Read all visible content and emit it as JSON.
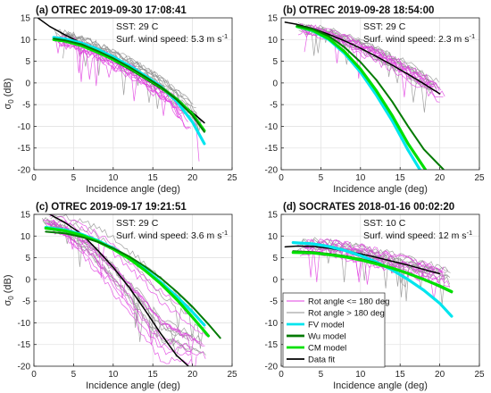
{
  "figure": {
    "legend_entries": [
      {
        "label": "Rot angle <= 180 deg",
        "color": "#e040e0"
      },
      {
        "label": "Rot angle > 180 deg",
        "color": "#909090"
      },
      {
        "label": "FV model",
        "color": "#00e5ee"
      },
      {
        "label": "Wu model",
        "color": "#007a00"
      },
      {
        "label": "CM model",
        "color": "#00e000"
      },
      {
        "label": "Data fit",
        "color": "#000000"
      }
    ],
    "colors": {
      "rot_le": "#e040e0",
      "rot_gt": "#909090",
      "fv": "#00e5ee",
      "wu": "#007a00",
      "cm": "#00e000",
      "fit": "#000000"
    }
  },
  "chart_data": [
    {
      "type": "line",
      "title": "(a) OTREC 2019-09-30 17:08:41",
      "annotations": [
        "SST: 29 C",
        "Surf. wind speed: 5.3 m s",
        "-1"
      ],
      "xlabel": "Incidence angle (deg)",
      "ylabel": "σ",
      "ylabel_sub": "0",
      "ylabel_unit": " (dB)",
      "xlim": [
        0,
        25
      ],
      "ylim": [
        -20,
        15
      ],
      "xticks": [
        0,
        5,
        10,
        15,
        20,
        25
      ],
      "yticks": [
        -20,
        -15,
        -10,
        -5,
        0,
        5,
        10,
        15
      ],
      "grid": true,
      "show_legend": false,
      "series": [
        {
          "key": "fit",
          "x": [
            0.5,
            2,
            4,
            6,
            8,
            10,
            12,
            14,
            16,
            18,
            20,
            21.5
          ],
          "y": [
            15,
            13,
            11,
            9.2,
            7.2,
            5.2,
            3.2,
            1.0,
            -1.3,
            -3.8,
            -6.8,
            -9.2
          ]
        },
        {
          "key": "fv",
          "x": [
            2.5,
            4,
            6,
            8,
            10,
            12,
            14,
            16,
            18,
            20,
            21.5
          ],
          "y": [
            10.5,
            10.1,
            9.2,
            7.8,
            6,
            4,
            1.7,
            -0.8,
            -4.2,
            -9,
            -14
          ]
        },
        {
          "key": "cm",
          "x": [
            2.5,
            4,
            6,
            8,
            10,
            12,
            14,
            16,
            18,
            20,
            21.5
          ],
          "y": [
            10,
            9.6,
            8.6,
            7.1,
            5.4,
            3.5,
            1.3,
            -1,
            -3.7,
            -7.2,
            -11
          ]
        },
        {
          "key": "wu",
          "x": [
            2.5,
            4,
            6,
            8,
            10,
            12,
            14,
            16,
            18,
            20,
            21.5
          ],
          "y": [
            10.2,
            9.8,
            8.9,
            7.4,
            5.7,
            3.7,
            1.5,
            -0.9,
            -3.8,
            -7.5,
            -11.3
          ]
        }
      ],
      "band_upper": {
        "x": [
          2.5,
          5,
          8,
          11,
          14,
          17,
          20,
          21.3
        ],
        "y": [
          12.5,
          11.5,
          9.5,
          7,
          4,
          0.5,
          -4,
          -7
        ]
      },
      "band_lower": {
        "x": [
          2.5,
          5,
          8,
          11,
          14,
          17,
          20,
          21.3
        ],
        "y": [
          9,
          8,
          5.5,
          2.5,
          -1,
          -5,
          -12,
          -17
        ]
      },
      "band_x_start": 2.5,
      "band_x_end": 21.3
    },
    {
      "type": "line",
      "title": "(b) OTREC 2019-09-28 18:54:00",
      "annotations": [
        "SST: 29 C",
        "Surf. wind speed: 2.3 m s",
        "-1"
      ],
      "xlabel": "Incidence angle (deg)",
      "ylabel": "",
      "ylabel_sub": "",
      "ylabel_unit": "",
      "xlim": [
        0,
        25
      ],
      "ylim": [
        -20,
        15
      ],
      "xticks": [
        0,
        5,
        10,
        15,
        20,
        25
      ],
      "yticks": [
        -20,
        -15,
        -10,
        -5,
        0,
        5,
        10,
        15
      ],
      "grid": true,
      "show_legend": false,
      "series": [
        {
          "key": "fit",
          "x": [
            0.5,
            2,
            4,
            6,
            8,
            10,
            12,
            14,
            16,
            18,
            20
          ],
          "y": [
            14,
            13.5,
            12.5,
            11.2,
            9.7,
            8,
            6.1,
            4.1,
            2,
            -0.2,
            -2.5
          ]
        },
        {
          "key": "fv",
          "x": [
            2,
            4,
            6,
            8,
            10,
            12,
            14,
            16,
            17.5
          ],
          "y": [
            13,
            12,
            10,
            6.8,
            2.5,
            -2.8,
            -8.7,
            -15.5,
            -20
          ]
        },
        {
          "key": "cm",
          "x": [
            2,
            4,
            6,
            8,
            10,
            12,
            14,
            16,
            18.2
          ],
          "y": [
            13,
            12.1,
            10.2,
            7.2,
            3.2,
            -1.8,
            -7.5,
            -14,
            -20
          ]
        },
        {
          "key": "wu",
          "x": [
            2,
            4,
            6,
            8,
            10,
            12,
            14,
            16,
            18,
            20.5
          ],
          "y": [
            13.2,
            12.4,
            10.8,
            8.2,
            4.8,
            0.7,
            -4.3,
            -10,
            -15.3,
            -20
          ]
        }
      ],
      "band_upper": {
        "x": [
          2,
          5,
          8,
          11,
          14,
          17,
          20,
          21
        ],
        "y": [
          14,
          13,
          11.5,
          9.5,
          7,
          4,
          0.5,
          -1
        ]
      },
      "band_lower": {
        "x": [
          2,
          5,
          8,
          11,
          14,
          17,
          20,
          21
        ],
        "y": [
          11.5,
          11,
          8.5,
          6,
          3,
          -0.5,
          -4,
          -6
        ]
      },
      "band_x_start": 2,
      "band_x_end": 21
    },
    {
      "type": "line",
      "title": "(c) OTREC 2019-09-17 19:21:51",
      "annotations": [
        "SST: 29 C",
        "Surf. wind speed: 3.6 m s",
        "-1"
      ],
      "xlabel": "Incidence angle (deg)",
      "ylabel": "σ",
      "ylabel_sub": "0",
      "ylabel_unit": " (dB)",
      "xlim": [
        0,
        25
      ],
      "ylim": [
        -20,
        15
      ],
      "xticks": [
        0,
        5,
        10,
        15,
        20,
        25
      ],
      "yticks": [
        -20,
        -15,
        -10,
        -5,
        0,
        5,
        10,
        15
      ],
      "grid": true,
      "show_legend": false,
      "series": [
        {
          "key": "fit",
          "x": [
            0.5,
            2,
            4,
            6,
            8,
            10,
            12,
            14,
            16,
            18,
            19.5
          ],
          "y": [
            15.5,
            15,
            13,
            10.5,
            6.8,
            2.8,
            -1.8,
            -7,
            -12.5,
            -17.5,
            -20
          ]
        },
        {
          "key": "fv",
          "x": [
            1.5,
            4,
            6,
            8,
            10,
            12,
            14,
            16,
            18,
            20,
            21.5
          ],
          "y": [
            12,
            11.4,
            10.4,
            9,
            7.2,
            5,
            2.4,
            -0.6,
            -3.9,
            -7.5,
            -10.5
          ]
        },
        {
          "key": "cm",
          "x": [
            1.5,
            4,
            6,
            8,
            10,
            12,
            14,
            16,
            18,
            20,
            22
          ],
          "y": [
            11.8,
            11.2,
            10.2,
            8.8,
            7,
            4.8,
            2.1,
            -1,
            -4.6,
            -8.7,
            -13
          ]
        },
        {
          "key": "wu",
          "x": [
            1.5,
            4,
            6,
            8,
            10,
            12,
            14,
            16,
            18,
            20,
            22,
            23.5
          ],
          "y": [
            11,
            10.6,
            9.8,
            8.7,
            7.2,
            5.3,
            3,
            0.3,
            -2.8,
            -6.3,
            -10.3,
            -13.5
          ]
        }
      ],
      "band_upper": {
        "x": [
          1,
          4,
          7,
          10,
          13,
          16,
          19,
          22
        ],
        "y": [
          15,
          15,
          14,
          11,
          7,
          2,
          -4,
          -10
        ]
      },
      "band_lower": {
        "x": [
          1,
          4,
          7,
          10,
          13,
          16,
          19,
          22
        ],
        "y": [
          13,
          9,
          3,
          -4,
          -12,
          -20,
          -20,
          -20
        ]
      },
      "band_x_start": 1,
      "band_x_end": 22
    },
    {
      "type": "line",
      "title": "(d) SOCRATES 2018-01-16 00:02:20",
      "annotations": [
        "SST: 10 C",
        "Surf. wind speed: 12 m s",
        "-1"
      ],
      "xlabel": "Incidence angle (deg)",
      "ylabel": "",
      "ylabel_sub": "",
      "ylabel_unit": "",
      "xlim": [
        0,
        25
      ],
      "ylim": [
        -20,
        15
      ],
      "xticks": [
        0,
        5,
        10,
        15,
        20,
        25
      ],
      "yticks": [
        -20,
        -15,
        -10,
        -5,
        0,
        5,
        10,
        15
      ],
      "grid": true,
      "show_legend": true,
      "series": [
        {
          "key": "fit",
          "x": [
            0.5,
            2,
            4,
            6,
            8,
            10,
            12,
            14,
            16,
            18,
            20
          ],
          "y": [
            7.5,
            7.7,
            7.6,
            7.2,
            6.6,
            5.9,
            5.1,
            4.2,
            3.3,
            2.3,
            1.3
          ]
        },
        {
          "key": "fv",
          "x": [
            1.5,
            4,
            6,
            8,
            10,
            12,
            14,
            16,
            18,
            20,
            21.5
          ],
          "y": [
            8.5,
            8.2,
            7.6,
            6.7,
            5.5,
            4,
            2.2,
            0,
            -2.5,
            -5.5,
            -8.5
          ]
        },
        {
          "key": "wu",
          "x": [
            1.5,
            4,
            6,
            8,
            10,
            12,
            14,
            16,
            18,
            20,
            21.5
          ],
          "y": [
            6.5,
            6.3,
            5.9,
            5.4,
            4.7,
            3.8,
            2.7,
            1.4,
            0,
            -1.7,
            -3
          ]
        },
        {
          "key": "cm",
          "x": [
            1.5,
            4,
            6,
            8,
            10,
            12,
            14,
            16,
            18,
            20,
            21.5
          ],
          "y": [
            6.2,
            6.1,
            5.7,
            5.2,
            4.5,
            3.6,
            2.6,
            1.4,
            0,
            -1.5,
            -2.8
          ]
        }
      ],
      "band_upper": {
        "x": [
          2,
          5,
          8,
          11,
          14,
          17,
          20,
          21.5
        ],
        "y": [
          9,
          9.5,
          9,
          8,
          6.5,
          5,
          3.5,
          2.5
        ]
      },
      "band_lower": {
        "x": [
          2,
          5,
          8,
          11,
          14,
          17,
          20,
          21.5
        ],
        "y": [
          6,
          6,
          5,
          3.5,
          2,
          0.5,
          -1,
          -2
        ]
      },
      "band_x_start": 2,
      "band_x_end": 21.5
    }
  ]
}
